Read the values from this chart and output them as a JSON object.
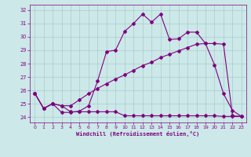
{
  "xlabel": "Windchill (Refroidissement éolien,°C)",
  "bg_color": "#cce8e8",
  "line_color": "#800080",
  "grid_color": "#aacccc",
  "xlim": [
    -0.5,
    23.5
  ],
  "ylim": [
    23.6,
    32.4
  ],
  "yticks": [
    24,
    25,
    26,
    27,
    28,
    29,
    30,
    31,
    32
  ],
  "xticks": [
    0,
    1,
    2,
    3,
    4,
    5,
    6,
    7,
    8,
    9,
    10,
    11,
    12,
    13,
    14,
    15,
    16,
    17,
    18,
    19,
    20,
    21,
    22,
    23
  ],
  "line1_x": [
    0,
    1,
    2,
    3,
    4,
    5,
    6,
    7,
    8,
    9,
    10,
    11,
    12,
    13,
    14,
    15,
    16,
    17,
    18,
    19,
    20,
    21,
    22,
    23
  ],
  "line1_y": [
    25.8,
    24.65,
    25.0,
    24.35,
    24.35,
    24.45,
    24.85,
    26.7,
    28.9,
    29.0,
    30.4,
    31.0,
    31.7,
    31.1,
    31.7,
    29.8,
    29.85,
    30.35,
    30.35,
    29.5,
    27.9,
    25.75,
    24.5,
    24.05
  ],
  "line2_x": [
    0,
    1,
    2,
    3,
    4,
    5,
    6,
    7,
    8,
    9,
    10,
    11,
    12,
    13,
    14,
    15,
    16,
    17,
    18,
    19,
    20,
    21,
    22,
    23
  ],
  "line2_y": [
    25.8,
    24.65,
    25.0,
    24.85,
    24.85,
    25.3,
    25.75,
    26.15,
    26.5,
    26.85,
    27.15,
    27.5,
    27.85,
    28.1,
    28.45,
    28.7,
    28.95,
    29.2,
    29.45,
    29.5,
    29.5,
    29.45,
    24.1,
    24.05
  ],
  "line3_x": [
    0,
    1,
    2,
    3,
    4,
    5,
    6,
    7,
    8,
    9,
    10,
    11,
    12,
    13,
    14,
    15,
    16,
    17,
    18,
    19,
    20,
    21,
    22,
    23
  ],
  "line3_y": [
    25.8,
    24.65,
    25.0,
    24.85,
    24.4,
    24.4,
    24.4,
    24.4,
    24.4,
    24.4,
    24.1,
    24.1,
    24.1,
    24.1,
    24.1,
    24.1,
    24.1,
    24.1,
    24.1,
    24.1,
    24.1,
    24.05,
    24.05,
    24.05
  ]
}
